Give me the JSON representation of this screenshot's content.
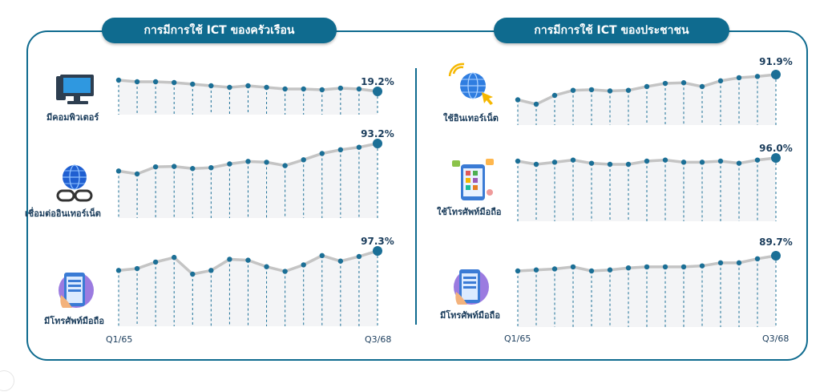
{
  "headers": {
    "left": "การมีการใช้ ICT ของครัวเรือน",
    "right": "การมีการใช้ ICT ของประชาชน"
  },
  "colors": {
    "primary": "#0f6b8f",
    "line": "#c4c4c4",
    "point": "#1b6f96"
  },
  "icons": {
    "household_computer": "computer-icon",
    "household_internet": "globe-chain-icon",
    "household_mobile": "smartphone-hand-icon",
    "person_internet": "globe-cursor-icon",
    "person_mobile_use": "smartphone-apps-icon",
    "person_mobile_own": "smartphone-hand-icon"
  },
  "axis": {
    "start": "Q1/65",
    "end": "Q3/68"
  },
  "chart_data": [
    {
      "type": "line",
      "label": "มีคอมพิวเตอร์",
      "values": [
        20.6,
        20.4,
        20.4,
        20.3,
        20.1,
        19.9,
        19.7,
        19.9,
        19.7,
        19.5,
        19.5,
        19.4,
        19.6,
        19.5,
        19.2
      ],
      "last_label": "19.2%"
    },
    {
      "type": "line",
      "label": "เชื่อมต่ออินเทอร์เน็ต",
      "values": [
        86.6,
        85.9,
        87.6,
        87.7,
        87.2,
        87.4,
        88.3,
        88.9,
        88.7,
        87.9,
        89.3,
        90.8,
        91.7,
        92.3,
        93.2
      ],
      "last_label": "93.2%"
    },
    {
      "type": "line",
      "label": "มีโทรศัพท์มือถือ",
      "values": [
        95.2,
        95.4,
        96.1,
        96.6,
        94.8,
        95.2,
        96.4,
        96.3,
        95.6,
        95.1,
        95.8,
        96.8,
        96.2,
        96.7,
        97.3
      ],
      "last_label": "97.3%"
    },
    {
      "type": "line",
      "label": "ใช้อินเทอร์เน็ต",
      "values": [
        87.9,
        87.2,
        88.6,
        89.4,
        89.5,
        89.3,
        89.4,
        90.0,
        90.5,
        90.6,
        90.0,
        90.9,
        91.4,
        91.6,
        91.9
      ],
      "last_label": "91.9%"
    },
    {
      "type": "line",
      "label": "ใช้โทรศัพท์มือถือ",
      "values": [
        95.7,
        95.4,
        95.6,
        95.8,
        95.5,
        95.4,
        95.4,
        95.7,
        95.8,
        95.6,
        95.6,
        95.7,
        95.5,
        95.8,
        96.0
      ],
      "last_label": "96.0%"
    },
    {
      "type": "line",
      "label": "มีโทรศัพท์มือถือ",
      "values": [
        88.2,
        88.3,
        88.4,
        88.6,
        88.2,
        88.3,
        88.5,
        88.6,
        88.6,
        88.6,
        88.7,
        89.0,
        89.0,
        89.4,
        89.7
      ],
      "last_label": "89.7%"
    }
  ]
}
